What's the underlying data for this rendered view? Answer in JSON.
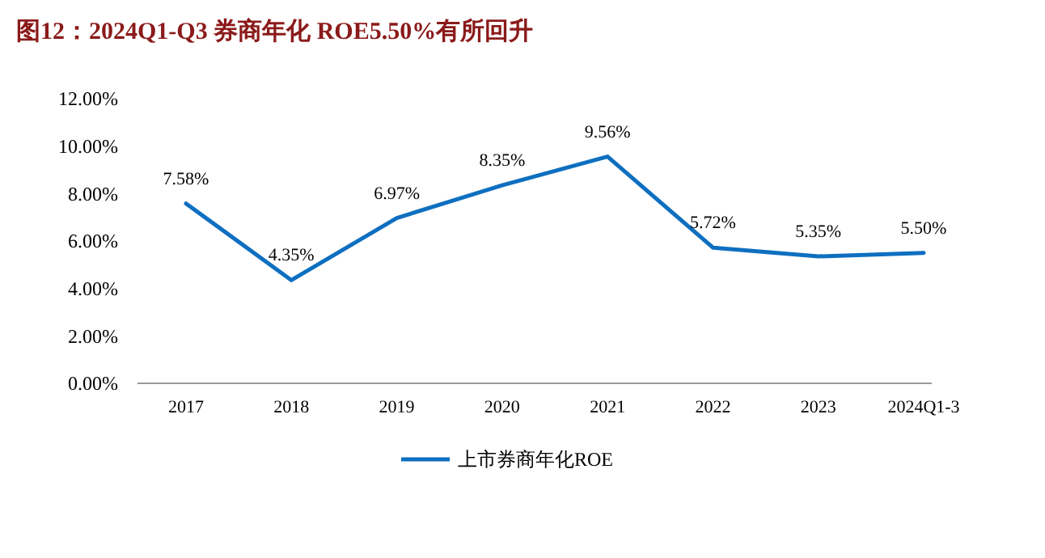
{
  "chart_data": {
    "type": "line",
    "title": "图12：2024Q1-Q3 券商年化 ROE5.50%有所回升",
    "categories": [
      "2017",
      "2018",
      "2019",
      "2020",
      "2021",
      "2022",
      "2023",
      "2024Q1-3"
    ],
    "series": [
      {
        "name": "上市券商年化ROE",
        "color": "#0e6fc0",
        "values": [
          7.58,
          4.35,
          6.97,
          8.35,
          9.56,
          5.72,
          5.35,
          5.5
        ],
        "value_labels": [
          "7.58%",
          "4.35%",
          "6.97%",
          "8.35%",
          "9.56%",
          "5.72%",
          "5.35%",
          "5.50%"
        ]
      }
    ],
    "ylim": [
      0,
      12
    ],
    "yticks": [
      {
        "value": 0,
        "label": "0.00%"
      },
      {
        "value": 2,
        "label": "2.00%"
      },
      {
        "value": 4,
        "label": "4.00%"
      },
      {
        "value": 6,
        "label": "6.00%"
      },
      {
        "value": 8,
        "label": "8.00%"
      },
      {
        "value": 10,
        "label": "10.00%"
      },
      {
        "value": 12,
        "label": "12.00%"
      }
    ],
    "legend": "bottom",
    "marker": "none",
    "line_style": "solid",
    "grid": false
  }
}
